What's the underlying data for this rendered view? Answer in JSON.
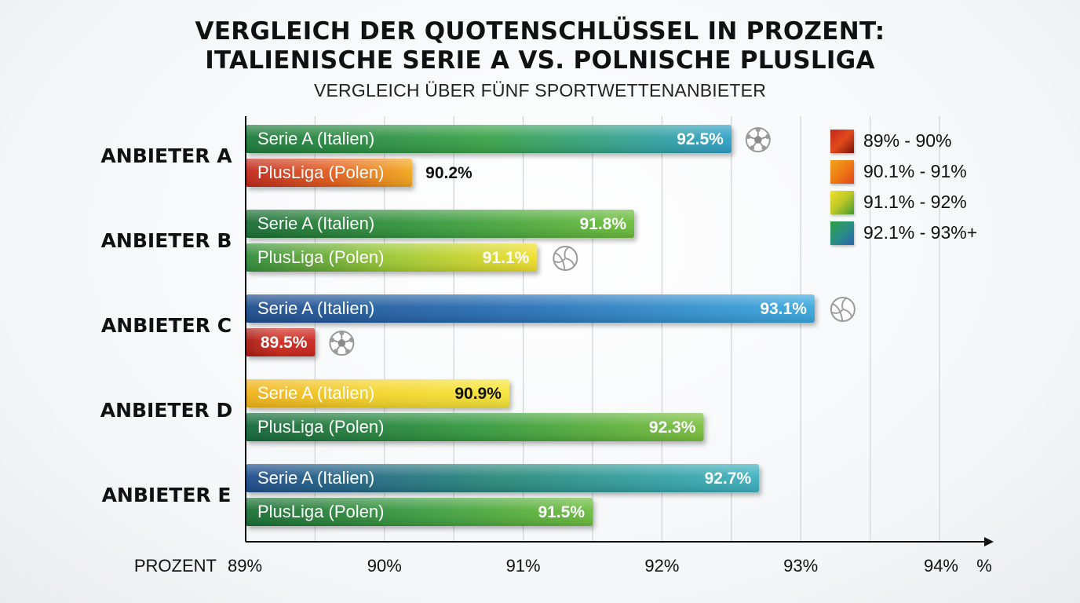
{
  "chart_data": {
    "type": "bar",
    "orientation": "horizontal",
    "title_line1": "VERGLEICH DER QUOTENSCHLÜSSEL IN PROZENT:",
    "title_line2": "ITALIENISCHE SERIE A VS. POLNISCHE PLUSLIGA",
    "subtitle": "VERGLEICH ÜBER FÜNF SPORTWETTENANBIETER",
    "xlabel": "PROZENT",
    "x_unit": "%",
    "xlim": [
      89,
      94
    ],
    "ticks": [
      89,
      90,
      91,
      92,
      93,
      94
    ],
    "tick_labels": [
      "89%",
      "90%",
      "91%",
      "92%",
      "93%",
      "94%"
    ],
    "grid": "vertical",
    "legend_position": "top-right",
    "legend": [
      {
        "label": "89% - 90%",
        "colors": [
          "#c0271d",
          "#e04a1c",
          "#7a1408"
        ]
      },
      {
        "label": "90.1% - 91%",
        "colors": [
          "#f0a21b",
          "#ef7b15",
          "#e0451a"
        ]
      },
      {
        "label": "91.1% - 92%",
        "colors": [
          "#f4df2a",
          "#b9c726",
          "#3f9a33"
        ]
      },
      {
        "label": "92.1% - 93%+",
        "colors": [
          "#2e9f45",
          "#2a8e82",
          "#2a63b0"
        ]
      }
    ],
    "categories": [
      "ANBIETER A",
      "ANBIETER B",
      "ANBIETER C",
      "ANBIETER D",
      "ANBIETER E"
    ],
    "groups": [
      {
        "category": "ANBIETER A",
        "bars": [
          {
            "label": "Serie A (Italien)",
            "value": 92.5,
            "value_label": "92.5%",
            "colors": [
              "#1e7a3b",
              "#3aa34a",
              "#2fa0c8"
            ],
            "label_color": "#ffffff",
            "value_inside": true,
            "icon": "soccer-ball-icon"
          },
          {
            "label": "PlusLiga (Polen)",
            "value": 90.2,
            "value_label": "90.2%",
            "colors": [
              "#c0271d",
              "#e35a1c",
              "#f2a81c"
            ],
            "label_color": "#ffffff",
            "value_inside": false,
            "icon": ""
          }
        ]
      },
      {
        "category": "ANBIETER B",
        "bars": [
          {
            "label": "Serie A (Italien)",
            "value": 91.8,
            "value_label": "91.8%",
            "colors": [
              "#1a6e34",
              "#3a9b40",
              "#6cbd3c"
            ],
            "label_color": "#ffffff",
            "value_inside": true,
            "icon": ""
          },
          {
            "label": "PlusLiga (Polen)",
            "value": 91.1,
            "value_label": "91.1%",
            "colors": [
              "#2f8b3a",
              "#9cc831",
              "#f1df2c"
            ],
            "label_color": "#ffffff",
            "value_inside": true,
            "icon": "volleyball-icon"
          }
        ]
      },
      {
        "category": "ANBIETER C",
        "bars": [
          {
            "label": "Serie A (Italien)",
            "value": 93.1,
            "value_label": "93.1%",
            "colors": [
              "#1f4d8c",
              "#2a72b8",
              "#3aa8de"
            ],
            "label_color": "#ffffff",
            "value_inside": true,
            "icon": "volleyball-icon"
          },
          {
            "label": "",
            "value": 89.5,
            "value_label": "89.5%",
            "colors": [
              "#a81c16",
              "#d12a1c",
              "#c8241a"
            ],
            "label_color": "#ffffff",
            "value_inside": true,
            "icon": "soccer-ball-icon"
          }
        ]
      },
      {
        "category": "ANBIETER D",
        "bars": [
          {
            "label": "Serie A (Italien)",
            "value": 90.9,
            "value_label": "90.9%",
            "colors": [
              "#f0b21c",
              "#f4d52a",
              "#f6e63a"
            ],
            "label_color": "#ffffff",
            "value_inside": true,
            "value_color": "#111111",
            "icon": ""
          },
          {
            "label": "PlusLiga (Polen)",
            "value": 92.3,
            "value_label": "92.3%",
            "colors": [
              "#16683a",
              "#34993f",
              "#7ac03c"
            ],
            "label_color": "#ffffff",
            "value_inside": true,
            "icon": ""
          }
        ]
      },
      {
        "category": "ANBIETER E",
        "bars": [
          {
            "label": "Serie A (Italien)",
            "value": 92.7,
            "value_label": "92.7%",
            "colors": [
              "#1f4d8c",
              "#2a8a7a",
              "#3cb0c0"
            ],
            "label_color": "#ffffff",
            "value_inside": true,
            "icon": ""
          },
          {
            "label": "PlusLiga (Polen)",
            "value": 91.5,
            "value_label": "91.5%",
            "colors": [
              "#1a6e34",
              "#3a9b40",
              "#6cbd3c"
            ],
            "label_color": "#ffffff",
            "value_inside": true,
            "icon": ""
          }
        ]
      }
    ]
  }
}
